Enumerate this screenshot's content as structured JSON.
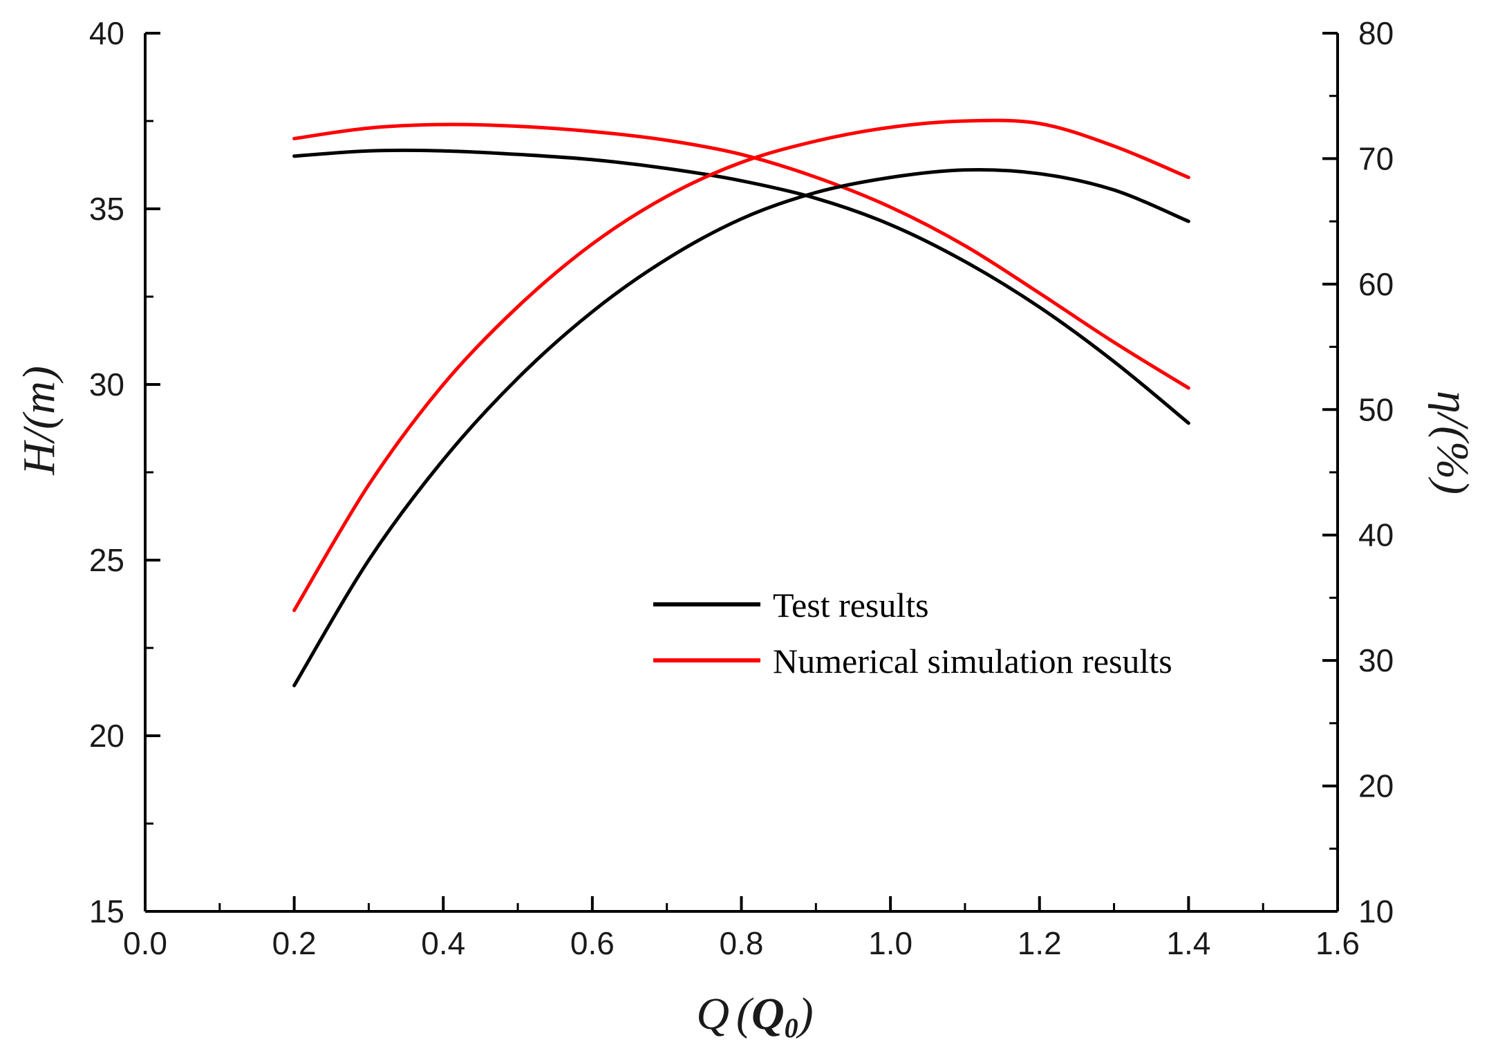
{
  "chart_data": {
    "type": "line",
    "xlabel": "Q (Q0)",
    "xlabel_main": "Q",
    "xlabel_paren_open": "(",
    "xlabel_sub_base": "Q",
    "xlabel_sub": "0",
    "xlabel_paren_close": ")",
    "ylabel_left": "H/(m)",
    "ylabel_right": "η/(%)",
    "xlim": [
      0.0,
      1.6
    ],
    "ylim_left": [
      15,
      40
    ],
    "ylim_right": [
      10,
      80
    ],
    "x_ticks": [
      "0.0",
      "0.2",
      "0.4",
      "0.6",
      "0.8",
      "1.0",
      "1.2",
      "1.4",
      "1.6"
    ],
    "y_left_ticks": [
      "15",
      "20",
      "25",
      "30",
      "35",
      "40"
    ],
    "y_right_ticks": [
      "10",
      "20",
      "30",
      "40",
      "50",
      "60",
      "70",
      "80"
    ],
    "grid": false,
    "legend_position": "center-right",
    "x": [
      0.2,
      0.3,
      0.4,
      0.5,
      0.6,
      0.7,
      0.8,
      0.9,
      1.0,
      1.1,
      1.2,
      1.3,
      1.4
    ],
    "series": [
      {
        "name": "Test results",
        "legend": true,
        "color": "#000000",
        "axis": "left",
        "values": [
          36.5,
          36.65,
          36.65,
          36.55,
          36.4,
          36.15,
          35.8,
          35.3,
          34.55,
          33.5,
          32.2,
          30.65,
          28.9
        ]
      },
      {
        "name": "Numerical simulation results",
        "legend": true,
        "color": "#ff0000",
        "axis": "left",
        "values": [
          37.0,
          37.3,
          37.4,
          37.35,
          37.2,
          36.95,
          36.55,
          35.9,
          35.05,
          33.95,
          32.6,
          31.2,
          29.9
        ]
      },
      {
        "name": "Test results efficiency",
        "legend": false,
        "color": "#000000",
        "axis": "right",
        "values": [
          28.0,
          38.0,
          46.0,
          52.5,
          57.8,
          62.0,
          65.2,
          67.3,
          68.5,
          69.1,
          68.8,
          67.5,
          65.0
        ]
      },
      {
        "name": "Numerical simulation results efficiency",
        "legend": false,
        "color": "#ff0000",
        "axis": "right",
        "values": [
          34.0,
          44.0,
          52.0,
          58.2,
          63.2,
          67.0,
          69.7,
          71.4,
          72.5,
          73.0,
          72.8,
          71.0,
          68.5
        ]
      }
    ]
  }
}
